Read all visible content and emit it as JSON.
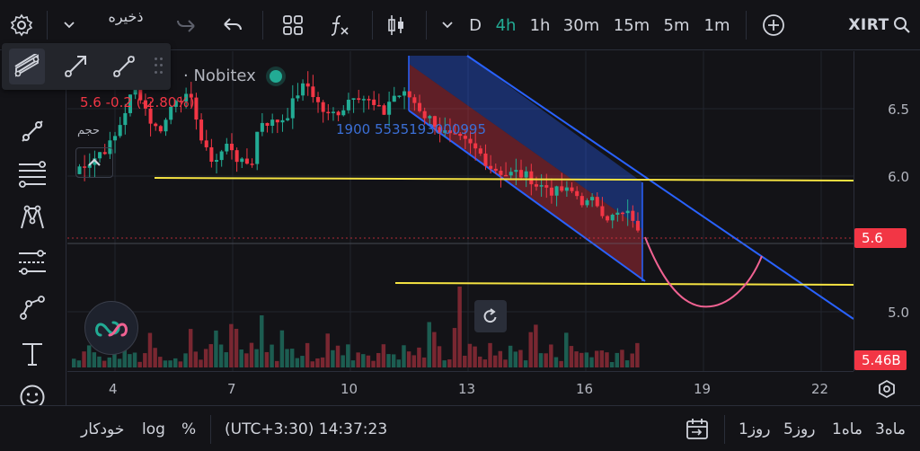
{
  "toolbar": {
    "save_label": "ذخیره",
    "timeframes": [
      "D",
      "4h",
      "1h",
      "30m",
      "15m",
      "5m",
      "1m"
    ],
    "active_timeframe": "4h",
    "symbol": "XIRT"
  },
  "legend": {
    "title": "· Nobitex",
    "change": "5.6  -0.2 (-2.80%)",
    "volume_label": "حجم",
    "indicator_value": "1900 5535193000995"
  },
  "price_axis": {
    "ticks": [
      "6.5",
      "6.0",
      "5.0"
    ],
    "current_price": "5.6",
    "volume_badge": "5.46B"
  },
  "time_axis": {
    "ticks": [
      "4",
      "7",
      "10",
      "13",
      "16",
      "19",
      "22"
    ]
  },
  "bottom": {
    "auto_label": "خودکار",
    "log_label": "log",
    "percent_label": "%",
    "clock": "(UTC+3:30) 14:37:23",
    "ranges": [
      "1روز",
      "5روز",
      "1ماه",
      "3ماه"
    ]
  },
  "colors": {
    "up": "#22ab94",
    "down": "#f23645",
    "channel_blue": "#2962ff",
    "support_yellow": "#f5e342",
    "projection_pink": "#f06292",
    "background": "#131317"
  }
}
